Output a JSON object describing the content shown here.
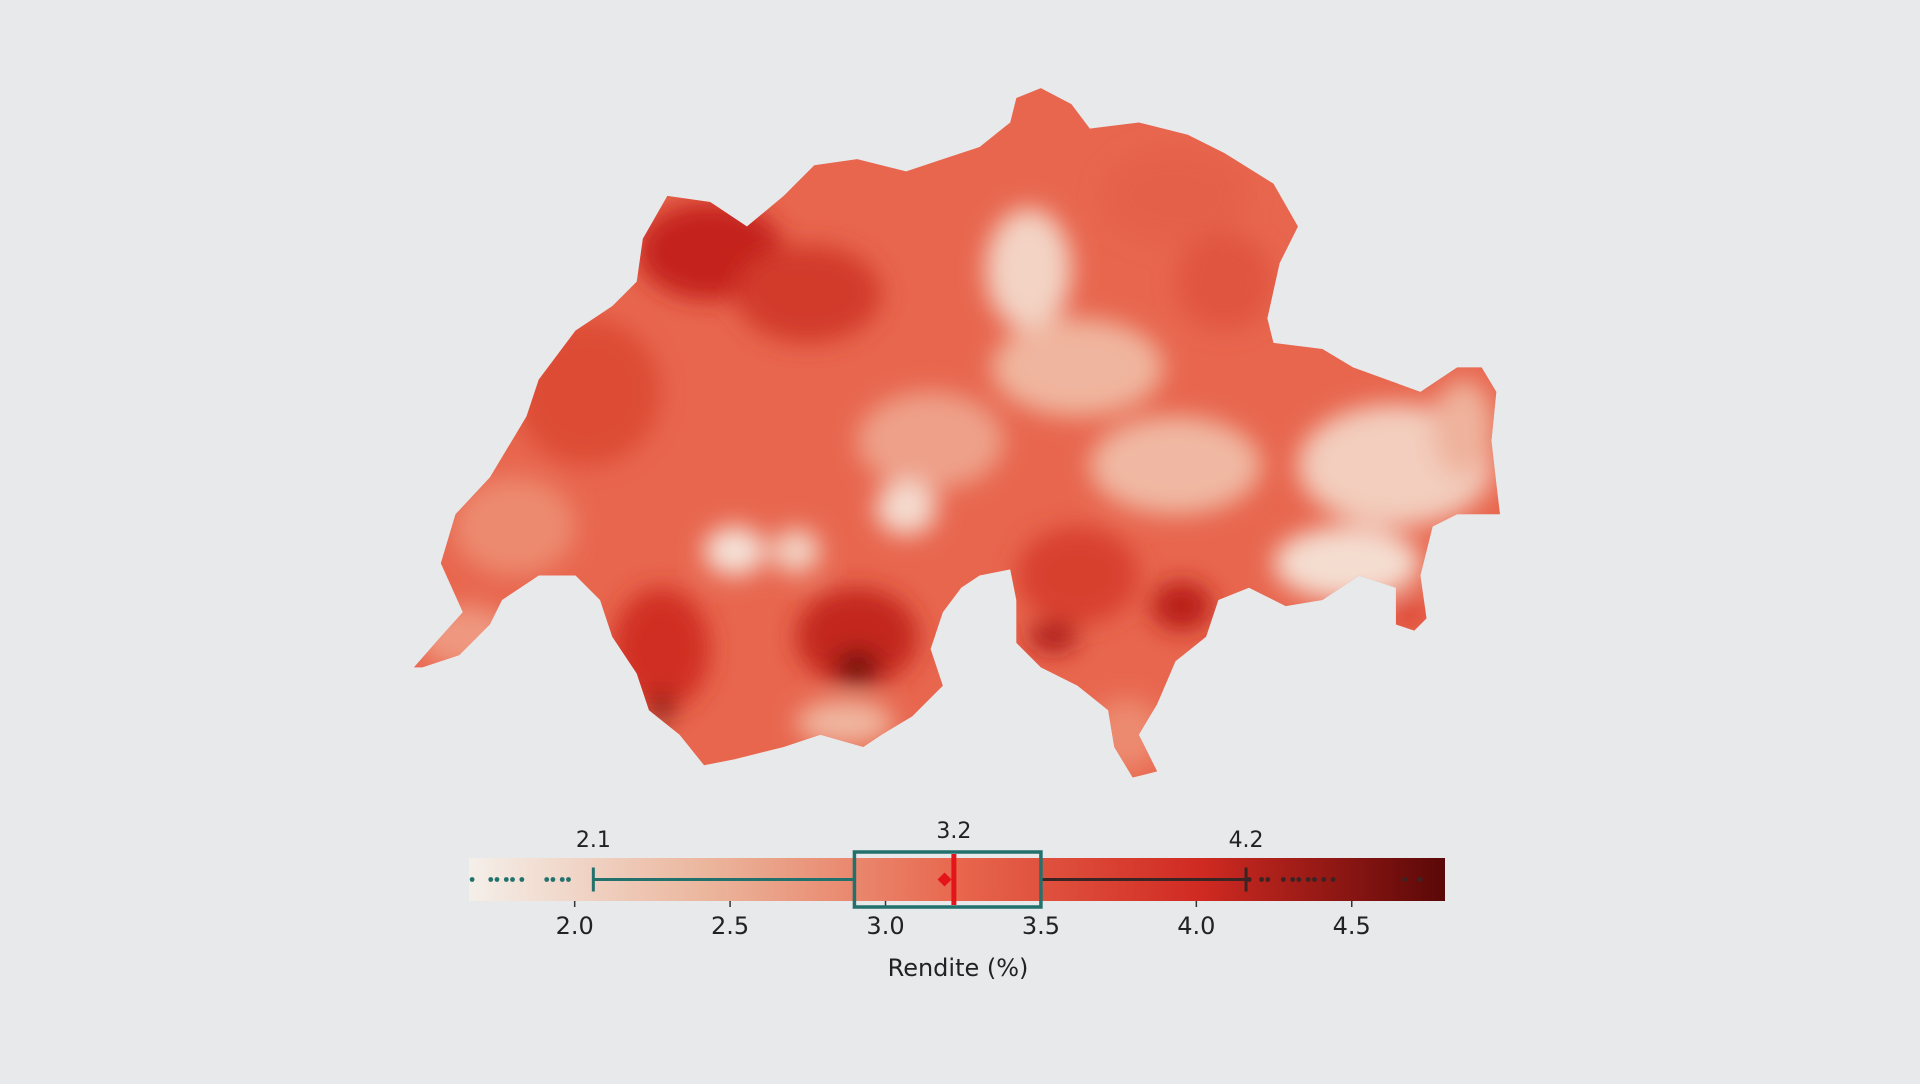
{
  "chart_data": {
    "type": "box",
    "xlabel": "Rendite (%)",
    "xlim": [
      1.66,
      4.8
    ],
    "xticks": [
      {
        "value": 2,
        "label": "2.0"
      },
      {
        "value": 2.5,
        "label": "2.5"
      },
      {
        "value": 3,
        "label": "3.0"
      },
      {
        "value": 3.5,
        "label": "3.5"
      },
      {
        "value": 4,
        "label": "4.0"
      },
      {
        "value": 4.5,
        "label": "4.5"
      }
    ],
    "whisker_low": 2.06,
    "q1": 2.9,
    "median": 3.22,
    "q3": 3.5,
    "whisker_high": 4.16,
    "mean": 3.19,
    "value_labels": {
      "whisker_low": "2.1",
      "median": "3.2",
      "whisker_high": "4.2"
    },
    "outliers": [
      1.67,
      1.73,
      1.75,
      1.78,
      1.8,
      1.83,
      1.91,
      1.93,
      1.96,
      1.98,
      4.17,
      4.21,
      4.23,
      4.28,
      4.31,
      4.33,
      4.36,
      4.38,
      4.41,
      4.44,
      4.67,
      4.72
    ],
    "colormap": [
      "#f4efe9",
      "#ebb49b",
      "#e8674d",
      "#d02a22",
      "#5a0808"
    ],
    "box_color": "#22716c",
    "median_color": "#e3151a",
    "upper_color": "#3a2424"
  }
}
